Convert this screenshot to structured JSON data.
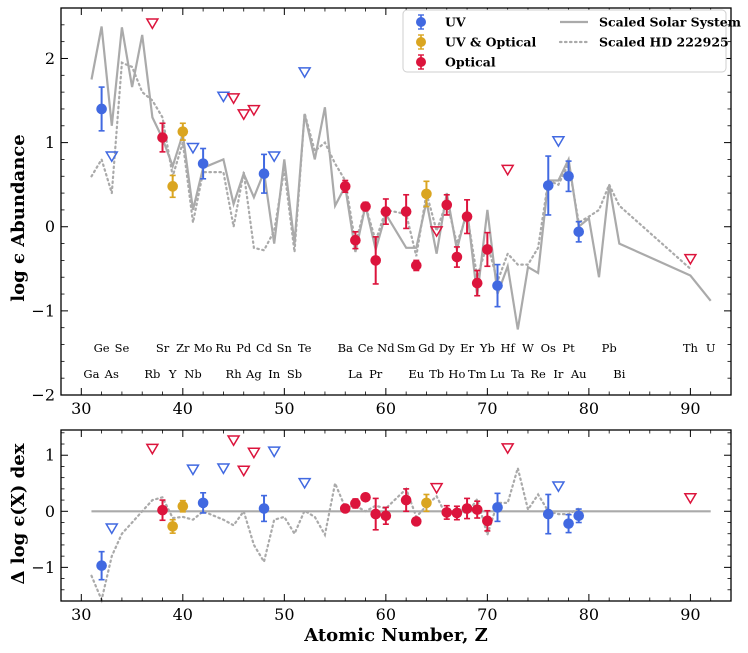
{
  "chart_data": [
    {
      "type": "scatter",
      "panel": "top",
      "title": "",
      "xlabel": "",
      "ylabel": "log ϵ Abundance",
      "xlim": [
        28,
        94
      ],
      "ylim": [
        -2,
        2.6
      ],
      "xticks": [
        30,
        40,
        50,
        60,
        70,
        80,
        90
      ],
      "yticks": [
        -2,
        -1,
        0,
        1,
        2
      ],
      "ytick_labels": [
        "−2",
        "−1",
        "0",
        "1",
        "2"
      ],
      "colors": {
        "uv": "#4169e1",
        "uv_optical": "#daa520",
        "optical": "#dc143c",
        "solar": "#aaaaaa",
        "hd": "#aaaaaa"
      },
      "solar_system": {
        "name": "Scaled Solar System",
        "x": [
          31,
          32,
          33,
          34,
          35,
          36,
          37,
          38,
          39,
          40,
          41,
          42,
          44,
          45,
          46,
          47,
          48,
          49,
          50,
          51,
          52,
          53,
          54,
          55,
          56,
          57,
          58,
          59,
          60,
          62,
          63,
          64,
          65,
          66,
          67,
          68,
          69,
          70,
          71,
          72,
          73,
          74,
          75,
          76,
          77,
          78,
          79,
          80,
          81,
          82,
          83,
          90,
          92
        ],
        "y": [
          1.75,
          2.38,
          1.2,
          2.37,
          1.66,
          2.28,
          1.3,
          1.05,
          0.72,
          1.1,
          0.2,
          0.7,
          0.8,
          0.27,
          0.63,
          0.35,
          0.65,
          -0.2,
          0.8,
          -0.2,
          1.34,
          0.8,
          1.42,
          0.25,
          0.48,
          -0.3,
          0.25,
          -0.27,
          0.15,
          -0.25,
          -0.25,
          0.3,
          -0.32,
          0.4,
          -0.27,
          0.2,
          -0.82,
          0.2,
          -0.8,
          -0.47,
          -1.22,
          -0.48,
          -0.55,
          0.55,
          0.55,
          0.8,
          0.0,
          0.1,
          -0.6,
          0.5,
          -0.2,
          -0.58,
          -0.88
        ]
      },
      "hd222925": {
        "name": "Scaled HD 222925",
        "x": [
          31,
          32,
          33,
          34,
          35,
          36,
          37,
          38,
          39,
          40,
          41,
          42,
          44,
          45,
          46,
          47,
          48,
          49,
          50,
          51,
          52,
          53,
          54,
          55,
          56,
          57,
          58,
          59,
          60,
          62,
          63,
          64,
          65,
          66,
          67,
          68,
          69,
          70,
          71,
          72,
          73,
          74,
          75,
          76,
          77,
          78,
          79,
          80,
          81,
          82,
          83,
          90
        ],
        "y": [
          0.6,
          0.8,
          0.4,
          1.95,
          1.9,
          1.6,
          1.5,
          1.3,
          0.6,
          1.0,
          0.05,
          0.65,
          0.65,
          0.0,
          0.65,
          -0.25,
          -0.28,
          -0.05,
          0.68,
          -0.3,
          1.35,
          0.9,
          1.0,
          0.75,
          0.55,
          -0.2,
          0.25,
          -0.17,
          0.2,
          0.15,
          -0.35,
          0.4,
          -0.05,
          0.3,
          -0.2,
          0.15,
          -0.6,
          -0.2,
          -0.65,
          -0.32,
          -0.45,
          -0.45,
          -0.25,
          0.55,
          0.5,
          0.75,
          0.05,
          0.12,
          0.2,
          0.5,
          0.25,
          -0.5
        ]
      },
      "detections": [
        {
          "z": 32,
          "y": 1.4,
          "err": 0.26,
          "group": "uv"
        },
        {
          "z": 42,
          "y": 0.75,
          "err": 0.18,
          "group": "uv"
        },
        {
          "z": 48,
          "y": 0.63,
          "err": 0.23,
          "group": "uv"
        },
        {
          "z": 71,
          "y": -0.7,
          "err": 0.25,
          "group": "uv"
        },
        {
          "z": 76,
          "y": 0.49,
          "err": 0.35,
          "group": "uv"
        },
        {
          "z": 78,
          "y": 0.6,
          "err": 0.18,
          "group": "uv"
        },
        {
          "z": 79,
          "y": -0.06,
          "err": 0.12,
          "group": "uv"
        },
        {
          "z": 39,
          "y": 0.48,
          "err": 0.13,
          "group": "uv_optical"
        },
        {
          "z": 40,
          "y": 1.13,
          "err": 0.1,
          "group": "uv_optical"
        },
        {
          "z": 64,
          "y": 0.39,
          "err": 0.15,
          "group": "uv_optical"
        },
        {
          "z": 38,
          "y": 1.06,
          "err": 0.17,
          "group": "optical"
        },
        {
          "z": 56,
          "y": 0.48,
          "err": 0.07,
          "group": "optical"
        },
        {
          "z": 57,
          "y": -0.16,
          "err": 0.1,
          "group": "optical"
        },
        {
          "z": 58,
          "y": 0.24,
          "err": 0.05,
          "group": "optical"
        },
        {
          "z": 59,
          "y": -0.4,
          "err": 0.28,
          "group": "optical"
        },
        {
          "z": 60,
          "y": 0.18,
          "err": 0.15,
          "group": "optical"
        },
        {
          "z": 62,
          "y": 0.18,
          "err": 0.2,
          "group": "optical"
        },
        {
          "z": 63,
          "y": -0.46,
          "err": 0.06,
          "group": "optical"
        },
        {
          "z": 66,
          "y": 0.26,
          "err": 0.12,
          "group": "optical"
        },
        {
          "z": 67,
          "y": -0.36,
          "err": 0.12,
          "group": "optical"
        },
        {
          "z": 68,
          "y": 0.12,
          "err": 0.2,
          "group": "optical"
        },
        {
          "z": 69,
          "y": -0.67,
          "err": 0.15,
          "group": "optical"
        },
        {
          "z": 70,
          "y": -0.27,
          "err": 0.2,
          "group": "optical"
        }
      ],
      "upper_limits": [
        {
          "z": 33,
          "y": 0.84,
          "group": "uv"
        },
        {
          "z": 37,
          "y": 2.42,
          "group": "optical"
        },
        {
          "z": 41,
          "y": 0.94,
          "group": "uv"
        },
        {
          "z": 44,
          "y": 1.55,
          "group": "uv"
        },
        {
          "z": 45,
          "y": 1.53,
          "group": "optical"
        },
        {
          "z": 46,
          "y": 1.34,
          "group": "optical"
        },
        {
          "z": 47,
          "y": 1.39,
          "group": "optical"
        },
        {
          "z": 49,
          "y": 0.84,
          "group": "uv"
        },
        {
          "z": 52,
          "y": 1.84,
          "group": "uv"
        },
        {
          "z": 65,
          "y": -0.05,
          "group": "optical"
        },
        {
          "z": 72,
          "y": 0.68,
          "group": "optical"
        },
        {
          "z": 77,
          "y": 1.02,
          "group": "uv"
        },
        {
          "z": 90,
          "y": -0.38,
          "group": "optical"
        }
      ],
      "element_labels": [
        {
          "z": 31,
          "sym": "Ga",
          "row": 2
        },
        {
          "z": 32,
          "sym": "Ge",
          "row": 1
        },
        {
          "z": 33,
          "sym": "As",
          "row": 2
        },
        {
          "z": 34,
          "sym": "Se",
          "row": 1
        },
        {
          "z": 37,
          "sym": "Rb",
          "row": 2
        },
        {
          "z": 38,
          "sym": "Sr",
          "row": 1
        },
        {
          "z": 39,
          "sym": "Y",
          "row": 2
        },
        {
          "z": 40,
          "sym": "Zr",
          "row": 1
        },
        {
          "z": 41,
          "sym": "Nb",
          "row": 2
        },
        {
          "z": 42,
          "sym": "Mo",
          "row": 1
        },
        {
          "z": 44,
          "sym": "Ru",
          "row": 1
        },
        {
          "z": 45,
          "sym": "Rh",
          "row": 2
        },
        {
          "z": 46,
          "sym": "Pd",
          "row": 1
        },
        {
          "z": 47,
          "sym": "Ag",
          "row": 2
        },
        {
          "z": 48,
          "sym": "Cd",
          "row": 1
        },
        {
          "z": 49,
          "sym": "In",
          "row": 2
        },
        {
          "z": 50,
          "sym": "Sn",
          "row": 1
        },
        {
          "z": 51,
          "sym": "Sb",
          "row": 2
        },
        {
          "z": 52,
          "sym": "Te",
          "row": 1
        },
        {
          "z": 56,
          "sym": "Ba",
          "row": 1
        },
        {
          "z": 57,
          "sym": "La",
          "row": 2
        },
        {
          "z": 58,
          "sym": "Ce",
          "row": 1
        },
        {
          "z": 59,
          "sym": "Pr",
          "row": 2
        },
        {
          "z": 60,
          "sym": "Nd",
          "row": 1
        },
        {
          "z": 62,
          "sym": "Sm",
          "row": 1
        },
        {
          "z": 63,
          "sym": "Eu",
          "row": 2
        },
        {
          "z": 64,
          "sym": "Gd",
          "row": 1
        },
        {
          "z": 65,
          "sym": "Tb",
          "row": 2
        },
        {
          "z": 66,
          "sym": "Dy",
          "row": 1
        },
        {
          "z": 67,
          "sym": "Ho",
          "row": 2
        },
        {
          "z": 68,
          "sym": "Er",
          "row": 1
        },
        {
          "z": 69,
          "sym": "Tm",
          "row": 2
        },
        {
          "z": 70,
          "sym": "Yb",
          "row": 1
        },
        {
          "z": 71,
          "sym": "Lu",
          "row": 2
        },
        {
          "z": 72,
          "sym": "Hf",
          "row": 1
        },
        {
          "z": 73,
          "sym": "Ta",
          "row": 2
        },
        {
          "z": 74,
          "sym": "W",
          "row": 1
        },
        {
          "z": 75,
          "sym": "Re",
          "row": 2
        },
        {
          "z": 76,
          "sym": "Os",
          "row": 1
        },
        {
          "z": 77,
          "sym": "Ir",
          "row": 2
        },
        {
          "z": 78,
          "sym": "Pt",
          "row": 1
        },
        {
          "z": 79,
          "sym": "Au",
          "row": 2
        },
        {
          "z": 82,
          "sym": "Pb",
          "row": 1
        },
        {
          "z": 83,
          "sym": "Bi",
          "row": 2
        },
        {
          "z": 90,
          "sym": "Th",
          "row": 1
        },
        {
          "z": 92,
          "sym": "U",
          "row": 1
        }
      ],
      "legend": {
        "position": "top-right",
        "entries": [
          {
            "label": "UV",
            "kind": "marker",
            "group": "uv"
          },
          {
            "label": "UV & Optical",
            "kind": "marker",
            "group": "uv_optical"
          },
          {
            "label": "Optical",
            "kind": "marker",
            "group": "optical"
          },
          {
            "label": "Scaled Solar System",
            "kind": "line",
            "style": "solid"
          },
          {
            "label": "Scaled HD 222925",
            "kind": "line",
            "style": "dotted"
          }
        ]
      }
    },
    {
      "type": "scatter",
      "panel": "bottom",
      "title": "",
      "xlabel": "Atomic Number, Z",
      "ylabel": "Δ log ϵ(X) dex",
      "xlim": [
        28,
        94
      ],
      "ylim": [
        -1.6,
        1.45
      ],
      "xticks": [
        30,
        40,
        50,
        60,
        70,
        80,
        90
      ],
      "yticks": [
        -1,
        0,
        1
      ],
      "ytick_labels": [
        "−1",
        "0",
        "1"
      ],
      "zero_line": {
        "x": [
          31,
          92
        ],
        "y": 0
      },
      "hd_residual": {
        "x": [
          31,
          32,
          33,
          34,
          35,
          36,
          37,
          38,
          39,
          40,
          41,
          42,
          44,
          45,
          46,
          47,
          48,
          49,
          50,
          51,
          52,
          53,
          54,
          55,
          56,
          57,
          58,
          59,
          60,
          62,
          63,
          64,
          65,
          66,
          67,
          68,
          69,
          70,
          71,
          72,
          73,
          74,
          75,
          76,
          77,
          78,
          79
        ],
        "y": [
          -1.15,
          -1.58,
          -0.8,
          -0.4,
          -0.2,
          0.0,
          0.2,
          0.25,
          -0.12,
          -0.1,
          -0.15,
          0.0,
          -0.15,
          -0.25,
          0.0,
          -0.6,
          -0.9,
          -0.15,
          -0.1,
          -0.4,
          0.01,
          -0.1,
          -0.42,
          0.5,
          0.07,
          0.1,
          0.0,
          0.1,
          0.05,
          0.4,
          -0.1,
          0.1,
          0.27,
          -0.1,
          0.07,
          -0.05,
          0.22,
          -0.42,
          0.15,
          0.15,
          0.77,
          0.03,
          0.3,
          0.0,
          -0.05,
          -0.05,
          0.05
        ]
      },
      "detections": [
        {
          "z": 32,
          "y": -0.97,
          "err": 0.25,
          "group": "uv"
        },
        {
          "z": 42,
          "y": 0.15,
          "err": 0.18,
          "group": "uv"
        },
        {
          "z": 48,
          "y": 0.05,
          "err": 0.23,
          "group": "uv"
        },
        {
          "z": 71,
          "y": 0.07,
          "err": 0.25,
          "group": "uv"
        },
        {
          "z": 76,
          "y": -0.05,
          "err": 0.35,
          "group": "uv"
        },
        {
          "z": 78,
          "y": -0.22,
          "err": 0.16,
          "group": "uv"
        },
        {
          "z": 79,
          "y": -0.08,
          "err": 0.12,
          "group": "uv"
        },
        {
          "z": 39,
          "y": -0.27,
          "err": 0.12,
          "group": "uv_optical"
        },
        {
          "z": 40,
          "y": 0.09,
          "err": 0.1,
          "group": "uv_optical"
        },
        {
          "z": 64,
          "y": 0.15,
          "err": 0.15,
          "group": "uv_optical"
        },
        {
          "z": 38,
          "y": 0.02,
          "err": 0.18,
          "group": "optical"
        },
        {
          "z": 56,
          "y": 0.05,
          "err": 0.06,
          "group": "optical"
        },
        {
          "z": 57,
          "y": 0.14,
          "err": 0.08,
          "group": "optical"
        },
        {
          "z": 58,
          "y": 0.25,
          "err": 0.05,
          "group": "optical"
        },
        {
          "z": 59,
          "y": -0.05,
          "err": 0.28,
          "group": "optical"
        },
        {
          "z": 60,
          "y": -0.08,
          "err": 0.15,
          "group": "optical"
        },
        {
          "z": 62,
          "y": 0.2,
          "err": 0.2,
          "group": "optical"
        },
        {
          "z": 63,
          "y": -0.18,
          "err": 0.06,
          "group": "optical"
        },
        {
          "z": 66,
          "y": -0.02,
          "err": 0.12,
          "group": "optical"
        },
        {
          "z": 67,
          "y": -0.03,
          "err": 0.12,
          "group": "optical"
        },
        {
          "z": 68,
          "y": 0.05,
          "err": 0.18,
          "group": "optical"
        },
        {
          "z": 69,
          "y": 0.03,
          "err": 0.15,
          "group": "optical"
        },
        {
          "z": 70,
          "y": -0.17,
          "err": 0.18,
          "group": "optical"
        }
      ],
      "upper_limits": [
        {
          "z": 33,
          "y": -0.3,
          "group": "uv"
        },
        {
          "z": 37,
          "y": 1.12,
          "group": "optical"
        },
        {
          "z": 41,
          "y": 0.75,
          "group": "uv"
        },
        {
          "z": 44,
          "y": 0.77,
          "group": "uv"
        },
        {
          "z": 45,
          "y": 1.27,
          "group": "optical"
        },
        {
          "z": 46,
          "y": 0.73,
          "group": "optical"
        },
        {
          "z": 47,
          "y": 1.05,
          "group": "optical"
        },
        {
          "z": 49,
          "y": 1.07,
          "group": "uv"
        },
        {
          "z": 52,
          "y": 0.51,
          "group": "uv"
        },
        {
          "z": 65,
          "y": 0.42,
          "group": "optical"
        },
        {
          "z": 72,
          "y": 1.13,
          "group": "optical"
        },
        {
          "z": 77,
          "y": 0.45,
          "group": "uv"
        },
        {
          "z": 90,
          "y": 0.24,
          "group": "optical"
        }
      ]
    }
  ]
}
